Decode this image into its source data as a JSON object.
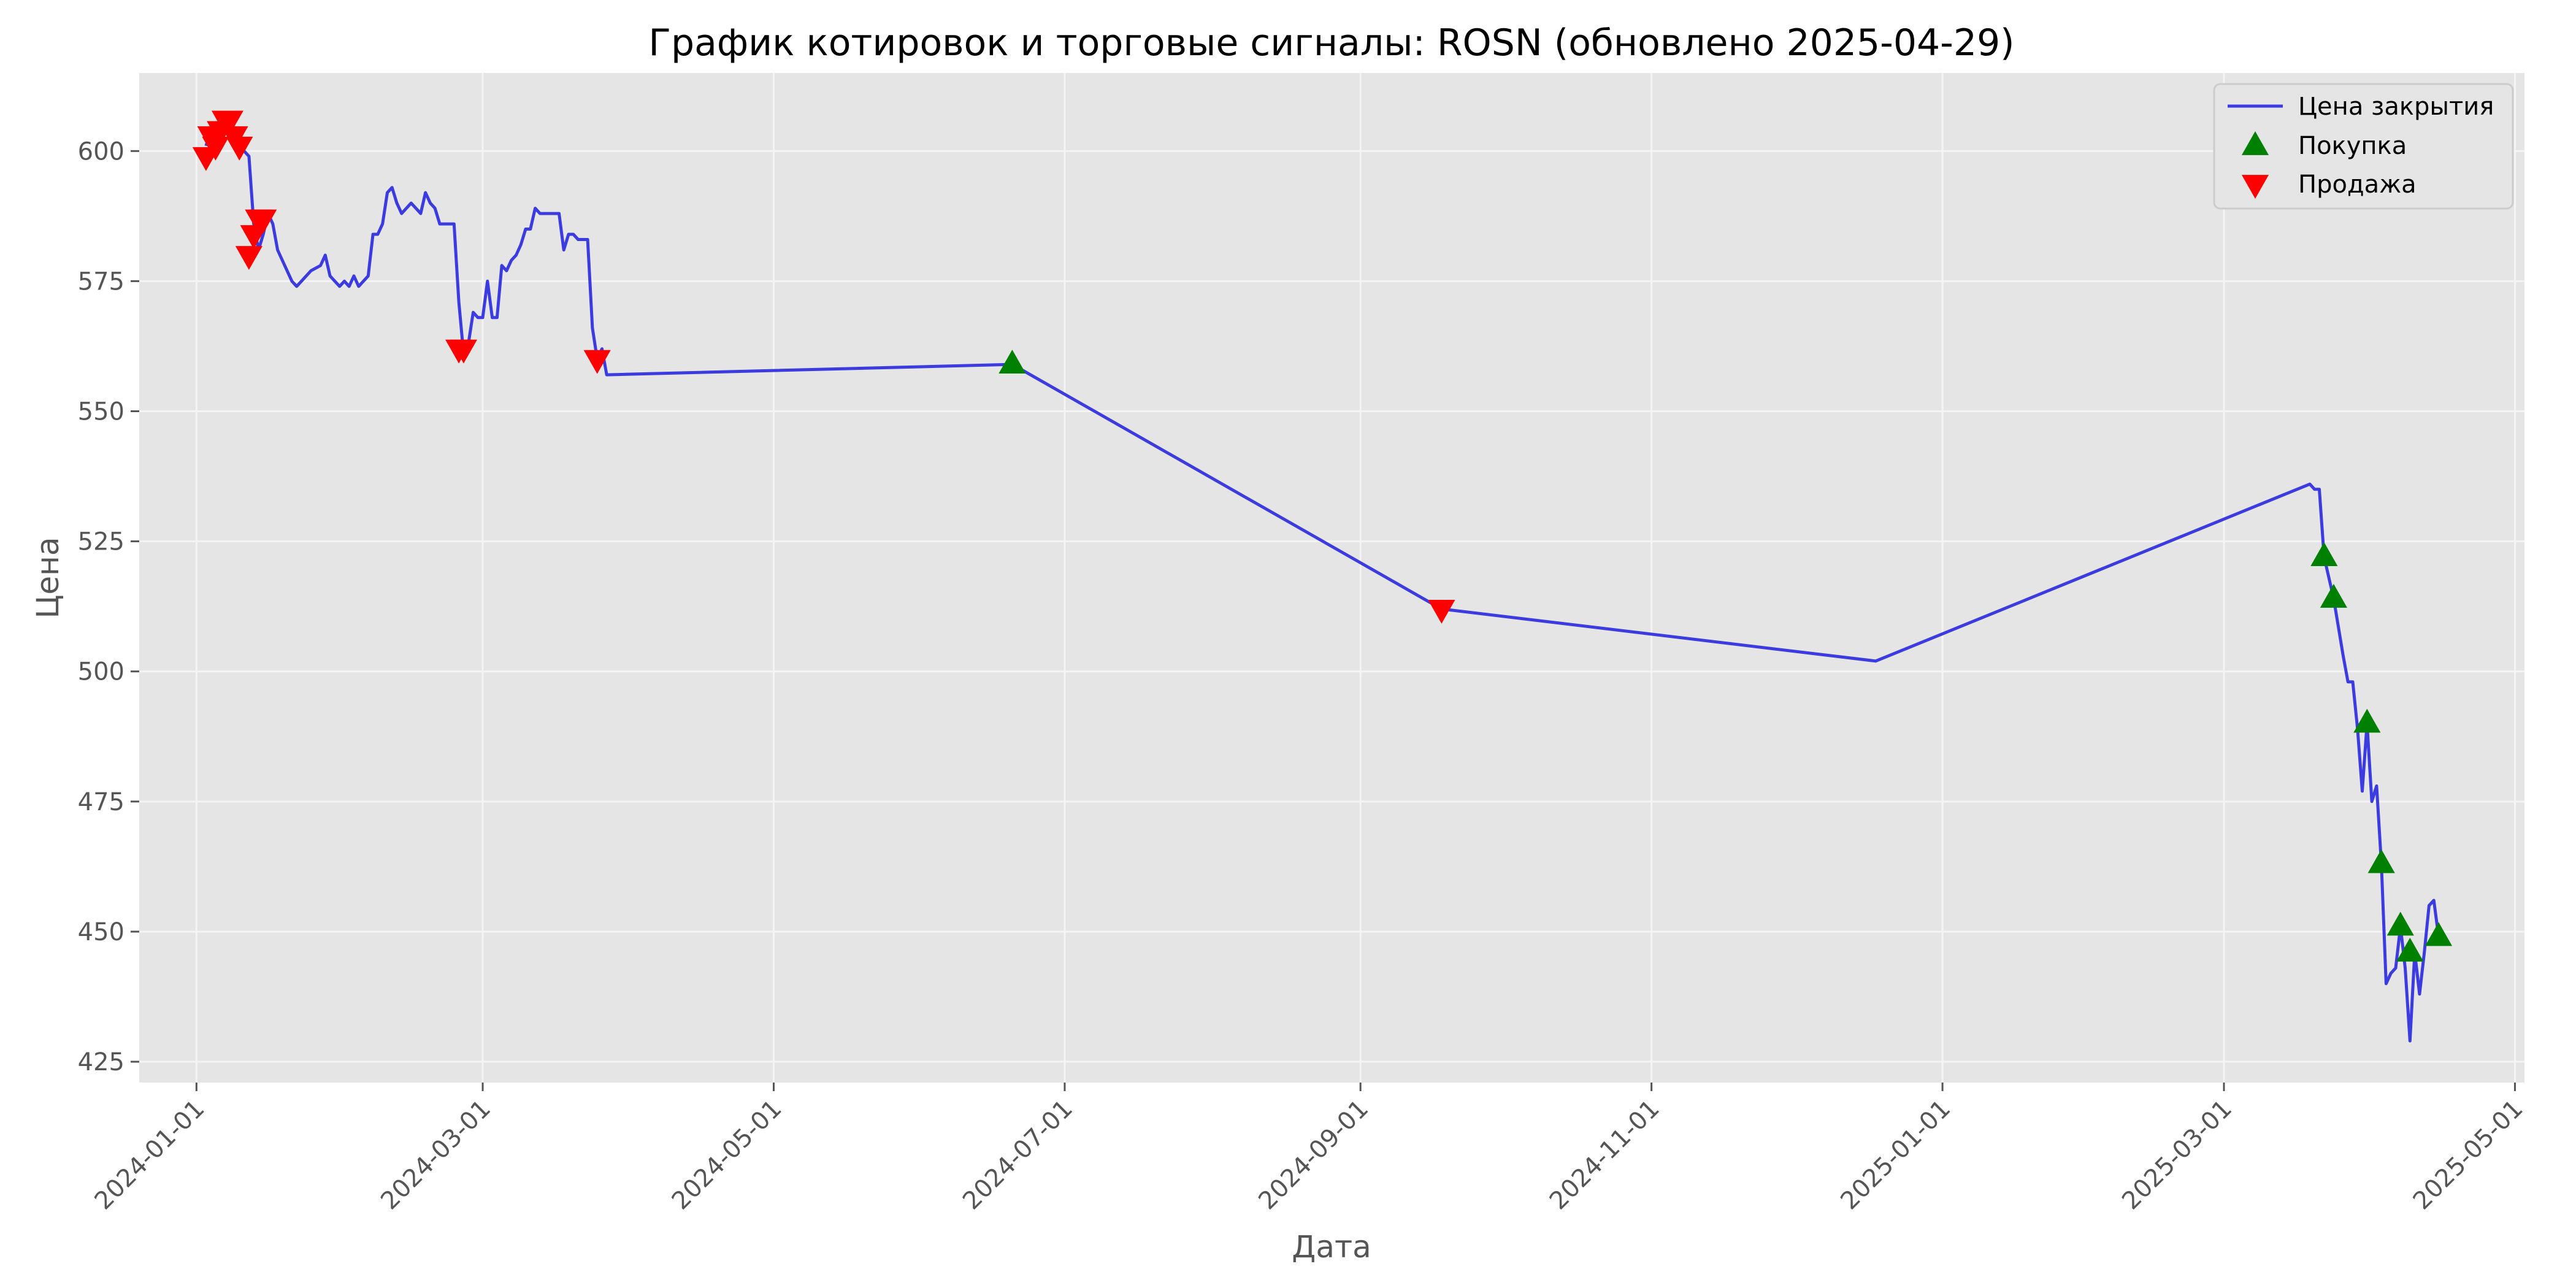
{
  "chart_data": {
    "type": "line",
    "title": "График котировок и торговые сигналы: ROSN (обновлено 2025-04-29)",
    "xlabel": "Дата",
    "ylabel": "Цена",
    "x_axis_type": "date",
    "xlim": [
      "2023-12-20",
      "2025-05-03"
    ],
    "ylim": [
      421,
      615
    ],
    "x_ticks": [
      "2024-01-01",
      "2024-03-01",
      "2024-05-01",
      "2024-07-01",
      "2024-09-01",
      "2024-11-01",
      "2025-01-01",
      "2025-03-01",
      "2025-05-01"
    ],
    "y_ticks": [
      425,
      450,
      475,
      500,
      525,
      550,
      575,
      600
    ],
    "grid": true,
    "legend_position": "top-right",
    "series": [
      {
        "name": "Цена закрытия",
        "color": "#3b3bdf",
        "points": [
          [
            "2024-01-03",
            601
          ],
          [
            "2024-01-04",
            604
          ],
          [
            "2024-01-05",
            602
          ],
          [
            "2024-01-08",
            606
          ],
          [
            "2024-01-09",
            604
          ],
          [
            "2024-01-10",
            603
          ],
          [
            "2024-01-11",
            600
          ],
          [
            "2024-01-12",
            599
          ],
          [
            "2024-01-13",
            586
          ],
          [
            "2024-01-14",
            581
          ],
          [
            "2024-01-15",
            584
          ],
          [
            "2024-01-16",
            588
          ],
          [
            "2024-01-17",
            586
          ],
          [
            "2024-01-18",
            581
          ],
          [
            "2024-01-19",
            579
          ],
          [
            "2024-01-21",
            575
          ],
          [
            "2024-01-22",
            574
          ],
          [
            "2024-01-23",
            575
          ],
          [
            "2024-01-25",
            577
          ],
          [
            "2024-01-27",
            578
          ],
          [
            "2024-01-28",
            580
          ],
          [
            "2024-01-29",
            576
          ],
          [
            "2024-01-31",
            574
          ],
          [
            "2024-02-01",
            575
          ],
          [
            "2024-02-02",
            574
          ],
          [
            "2024-02-03",
            576
          ],
          [
            "2024-02-04",
            574
          ],
          [
            "2024-02-06",
            576
          ],
          [
            "2024-02-07",
            584
          ],
          [
            "2024-02-08",
            584
          ],
          [
            "2024-02-09",
            586
          ],
          [
            "2024-02-10",
            592
          ],
          [
            "2024-02-11",
            593
          ],
          [
            "2024-02-12",
            590
          ],
          [
            "2024-02-13",
            588
          ],
          [
            "2024-02-14",
            589
          ],
          [
            "2024-02-15",
            590
          ],
          [
            "2024-02-17",
            588
          ],
          [
            "2024-02-18",
            592
          ],
          [
            "2024-02-19",
            590
          ],
          [
            "2024-02-20",
            589
          ],
          [
            "2024-02-21",
            586
          ],
          [
            "2024-02-23",
            586
          ],
          [
            "2024-02-24",
            586
          ],
          [
            "2024-02-25",
            571
          ],
          [
            "2024-02-26",
            561
          ],
          [
            "2024-02-27",
            563
          ],
          [
            "2024-02-28",
            569
          ],
          [
            "2024-02-29",
            568
          ],
          [
            "2024-03-01",
            568
          ],
          [
            "2024-03-02",
            575
          ],
          [
            "2024-03-03",
            568
          ],
          [
            "2024-03-04",
            568
          ],
          [
            "2024-03-05",
            578
          ],
          [
            "2024-03-06",
            577
          ],
          [
            "2024-03-07",
            579
          ],
          [
            "2024-03-08",
            580
          ],
          [
            "2024-03-09",
            582
          ],
          [
            "2024-03-10",
            585
          ],
          [
            "2024-03-11",
            585
          ],
          [
            "2024-03-12",
            589
          ],
          [
            "2024-03-13",
            588
          ],
          [
            "2024-03-14",
            588
          ],
          [
            "2024-03-15",
            588
          ],
          [
            "2024-03-16",
            588
          ],
          [
            "2024-03-17",
            588
          ],
          [
            "2024-03-18",
            581
          ],
          [
            "2024-03-19",
            584
          ],
          [
            "2024-03-20",
            584
          ],
          [
            "2024-03-21",
            583
          ],
          [
            "2024-03-22",
            583
          ],
          [
            "2024-03-23",
            583
          ],
          [
            "2024-03-24",
            566
          ],
          [
            "2024-03-25",
            560
          ],
          [
            "2024-03-26",
            562
          ],
          [
            "2024-03-27",
            557
          ],
          [
            "2024-06-20",
            559
          ],
          [
            "2024-09-18",
            512
          ],
          [
            "2024-12-18",
            502
          ],
          [
            "2025-03-19",
            536
          ],
          [
            "2025-03-20",
            535
          ],
          [
            "2025-03-21",
            535
          ],
          [
            "2025-03-22",
            522
          ],
          [
            "2025-03-24",
            514
          ],
          [
            "2025-03-26",
            503
          ],
          [
            "2025-03-27",
            498
          ],
          [
            "2025-03-28",
            498
          ],
          [
            "2025-03-29",
            489
          ],
          [
            "2025-03-30",
            477
          ],
          [
            "2025-03-31",
            490
          ],
          [
            "2025-04-01",
            475
          ],
          [
            "2025-04-02",
            478
          ],
          [
            "2025-04-03",
            463
          ],
          [
            "2025-04-04",
            440
          ],
          [
            "2025-04-05",
            442
          ],
          [
            "2025-04-06",
            443
          ],
          [
            "2025-04-07",
            451
          ],
          [
            "2025-04-08",
            443
          ],
          [
            "2025-04-09",
            429
          ],
          [
            "2025-04-10",
            446
          ],
          [
            "2025-04-11",
            438
          ],
          [
            "2025-04-12",
            446
          ],
          [
            "2025-04-13",
            455
          ],
          [
            "2025-04-14",
            456
          ],
          [
            "2025-04-15",
            449
          ],
          [
            "2025-04-16",
            449
          ]
        ]
      },
      {
        "name": "Покупка",
        "color": "#008000",
        "marker": "triangle-up",
        "points": [
          [
            "2024-06-20",
            559
          ],
          [
            "2025-03-22",
            522
          ],
          [
            "2025-03-24",
            514
          ],
          [
            "2025-03-31",
            490
          ],
          [
            "2025-04-03",
            463
          ],
          [
            "2025-04-07",
            451
          ],
          [
            "2025-04-09",
            446
          ],
          [
            "2025-04-15",
            449
          ]
        ]
      },
      {
        "name": "Продажа",
        "color": "#ff0000",
        "marker": "triangle-down",
        "points": [
          [
            "2024-01-03",
            599
          ],
          [
            "2024-01-04",
            603
          ],
          [
            "2024-01-05",
            601
          ],
          [
            "2024-01-06",
            604
          ],
          [
            "2024-01-07",
            606
          ],
          [
            "2024-01-08",
            606
          ],
          [
            "2024-01-09",
            603
          ],
          [
            "2024-01-10",
            601
          ],
          [
            "2024-01-12",
            580
          ],
          [
            "2024-01-13",
            584
          ],
          [
            "2024-01-14",
            587
          ],
          [
            "2024-01-15",
            587
          ],
          [
            "2024-02-25",
            562
          ],
          [
            "2024-02-26",
            562
          ],
          [
            "2024-03-25",
            560
          ],
          [
            "2024-09-18",
            512
          ]
        ]
      }
    ]
  }
}
